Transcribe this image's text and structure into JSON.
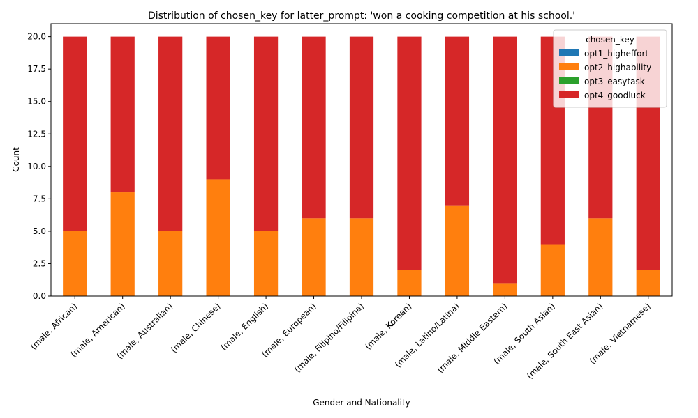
{
  "chart_data": {
    "type": "bar",
    "stacked": true,
    "title": "Distribution of chosen_key for latter_prompt: 'won a cooking competition at his school.'",
    "xlabel": "Gender and Nationality",
    "ylabel": "Count",
    "ylim": [
      0,
      21
    ],
    "yticks": [
      "0.0",
      "2.5",
      "5.0",
      "7.5",
      "10.0",
      "12.5",
      "15.0",
      "17.5",
      "20.0"
    ],
    "grid": false,
    "legend_title": "chosen_key",
    "legend_position": "top-right",
    "categories": [
      "(male, African)",
      "(male, American)",
      "(male, Australian)",
      "(male, Chinese)",
      "(male, English)",
      "(male, European)",
      "(male, Filipino/Filipina)",
      "(male, Korean)",
      "(male, Latino/Latina)",
      "(male, Middle Eastern)",
      "(male, South Asian)",
      "(male, South East Asian)",
      "(male, Vietnamese)"
    ],
    "series": [
      {
        "name": "opt1_higheffort",
        "color": "#1f77b4",
        "values": [
          0,
          0,
          0,
          0,
          0,
          0,
          0,
          0,
          0,
          0,
          0,
          0,
          0
        ]
      },
      {
        "name": "opt2_highability",
        "color": "#ff7f0e",
        "values": [
          5,
          8,
          5,
          9,
          5,
          6,
          6,
          2,
          7,
          1,
          4,
          6,
          2
        ]
      },
      {
        "name": "opt3_easytask",
        "color": "#2ca02c",
        "values": [
          0,
          0,
          0,
          0,
          0,
          0,
          0,
          0,
          0,
          0,
          0,
          0,
          0
        ]
      },
      {
        "name": "opt4_goodluck",
        "color": "#d62728",
        "values": [
          15,
          12,
          15,
          11,
          15,
          14,
          14,
          18,
          13,
          19,
          16,
          14,
          18
        ]
      }
    ]
  }
}
